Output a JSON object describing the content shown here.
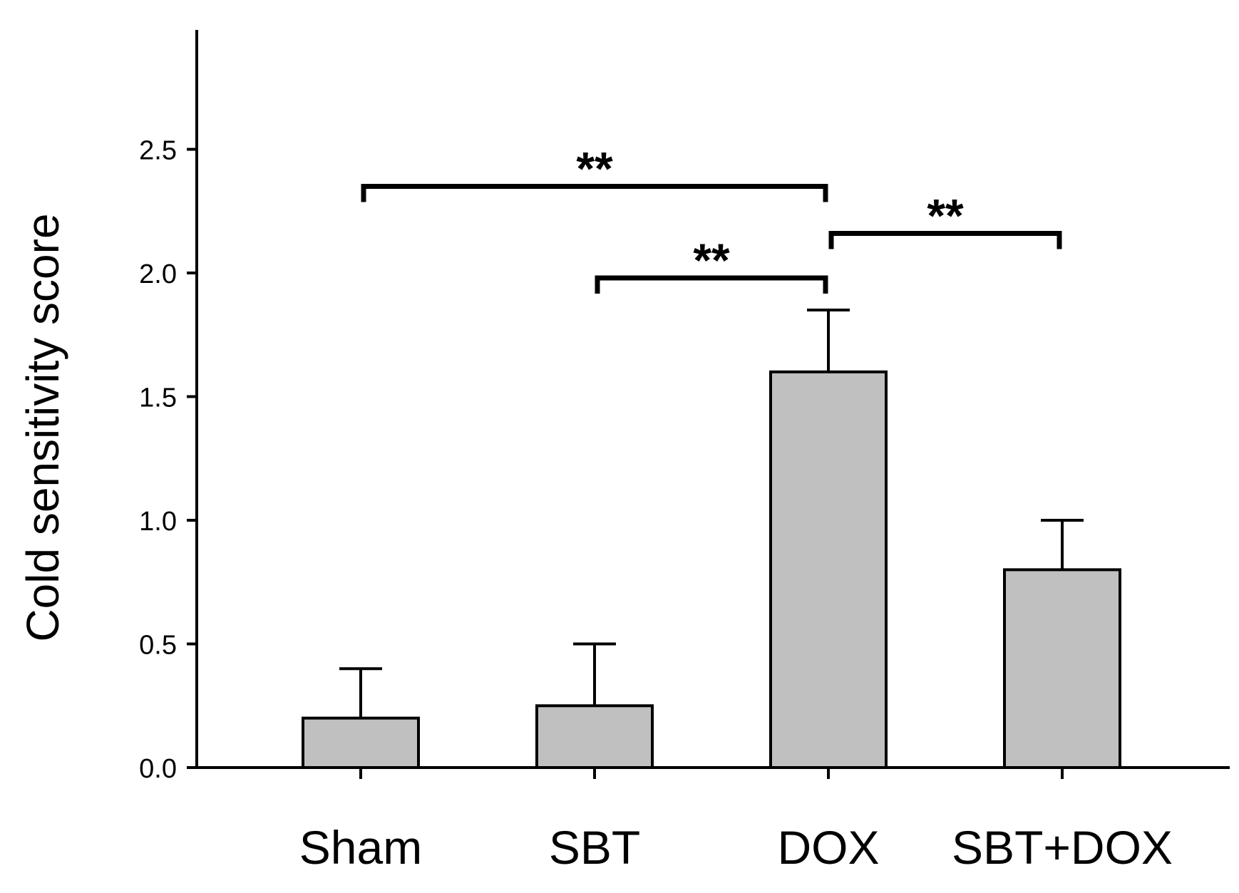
{
  "chart_data": {
    "type": "bar",
    "title": "",
    "xlabel": "",
    "ylabel": "Cold sensitivity score",
    "ylim": [
      0,
      3.0
    ],
    "yticks": [
      0.0,
      0.5,
      1.0,
      1.5,
      2.0,
      2.5
    ],
    "ytick_labels": [
      "0.0",
      "0.5",
      "1.0",
      "1.5",
      "2.0",
      "2.5"
    ],
    "categories": [
      "Sham",
      "SBT",
      "DOX",
      "SBT+DOX"
    ],
    "values": [
      0.2,
      0.25,
      1.6,
      0.8
    ],
    "errors": [
      0.2,
      0.25,
      0.25,
      0.2
    ],
    "bar_color": "#c0c0c0",
    "significance": [
      {
        "from": 0,
        "to": 2,
        "y": 2.35,
        "label": "**"
      },
      {
        "from": 1,
        "to": 2,
        "y": 1.98,
        "label": "**"
      },
      {
        "from": 2,
        "to": 3,
        "y": 2.16,
        "label": "**"
      }
    ]
  }
}
